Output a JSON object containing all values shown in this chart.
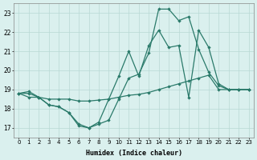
{
  "xlabel": "Humidex (Indice chaleur)",
  "bg_color": "#daf0ee",
  "grid_color": "#b8d8d4",
  "line_color": "#2a7a6a",
  "xlim": [
    -0.5,
    23.5
  ],
  "ylim": [
    16.5,
    23.5
  ],
  "yticks": [
    17,
    18,
    19,
    20,
    21,
    22,
    23
  ],
  "xticks": [
    0,
    1,
    2,
    3,
    4,
    5,
    6,
    7,
    8,
    9,
    10,
    11,
    12,
    13,
    14,
    15,
    16,
    17,
    18,
    19,
    20,
    21,
    22,
    23
  ],
  "line1_x": [
    0,
    1,
    2,
    3,
    4,
    5,
    6,
    7,
    8,
    9,
    10,
    11,
    12,
    13,
    14,
    15,
    16,
    17,
    18,
    19,
    20,
    21,
    22,
    23
  ],
  "line1_y": [
    18.8,
    18.9,
    18.6,
    18.2,
    18.1,
    17.8,
    17.1,
    17.0,
    17.2,
    17.4,
    18.5,
    19.6,
    19.8,
    20.9,
    23.2,
    23.2,
    22.6,
    22.8,
    21.1,
    19.9,
    19.2,
    19.0,
    19.0,
    19.0
  ],
  "line2_x": [
    0,
    1,
    2,
    3,
    4,
    5,
    6,
    7,
    8,
    9,
    10,
    11,
    12,
    13,
    14,
    15,
    16,
    17,
    18,
    19,
    20,
    21,
    22,
    23
  ],
  "line2_y": [
    18.8,
    18.6,
    18.6,
    18.2,
    18.1,
    17.8,
    17.2,
    17.0,
    17.3,
    18.5,
    19.7,
    21.0,
    19.7,
    21.3,
    22.1,
    21.2,
    21.3,
    18.6,
    22.1,
    21.2,
    19.3,
    19.0,
    19.0,
    19.0
  ],
  "line3_x": [
    0,
    1,
    2,
    3,
    4,
    5,
    6,
    7,
    8,
    9,
    10,
    11,
    12,
    13,
    14,
    15,
    16,
    17,
    18,
    19,
    20,
    21,
    22,
    23
  ],
  "line3_y": [
    18.8,
    18.8,
    18.6,
    18.5,
    18.5,
    18.5,
    18.4,
    18.4,
    18.45,
    18.5,
    18.6,
    18.7,
    18.75,
    18.85,
    19.0,
    19.15,
    19.3,
    19.45,
    19.6,
    19.75,
    19.0,
    19.0,
    19.0,
    19.0
  ]
}
